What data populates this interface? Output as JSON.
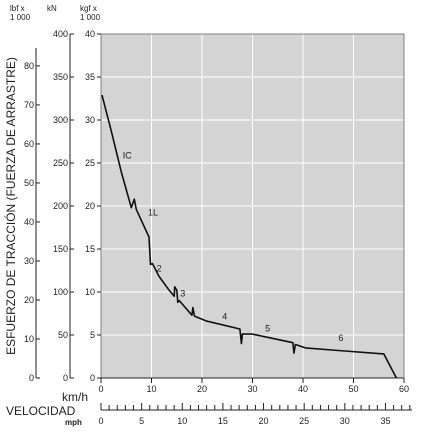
{
  "chart_data": {
    "type": "line",
    "title": "",
    "ylabel": "ESFUERZO DE TRACCIÓN (FUERZA DE ARRASTRE)",
    "xlabel": "VELOCIDAD",
    "units": {
      "lbf": "lbf x\n1 000",
      "kN": "kN",
      "kgf": "kgf x\n1 000",
      "kmh": "km/h",
      "mph": "mph"
    },
    "x_kmh": {
      "min": 0,
      "max": 60,
      "ticks": [
        0,
        10,
        20,
        30,
        40,
        50,
        60
      ]
    },
    "x_mph": {
      "min": 0,
      "max": 35,
      "ticks": [
        0,
        5,
        10,
        15,
        20,
        25,
        30,
        35
      ]
    },
    "y_kgf": {
      "min": 0,
      "max": 40,
      "ticks": [
        0,
        5,
        10,
        15,
        20,
        25,
        30,
        35,
        40
      ]
    },
    "y_kN": {
      "ticks": [
        0,
        50,
        100,
        150,
        200,
        250,
        300,
        350,
        400
      ]
    },
    "y_lbf": {
      "ticks": [
        0,
        10,
        20,
        30,
        40,
        50,
        60,
        70,
        80
      ]
    },
    "grid": true,
    "series": [
      {
        "points": [
          [
            0.2,
            32.9
          ],
          [
            2.0,
            28.8
          ],
          [
            4.0,
            24.0
          ],
          [
            6.0,
            19.8
          ],
          [
            6.6,
            20.8
          ],
          [
            7.0,
            19.6
          ],
          [
            9.5,
            16.4
          ],
          [
            9.8,
            13.2
          ],
          [
            10.2,
            13.3
          ],
          [
            11.5,
            11.8
          ],
          [
            13.5,
            10.2
          ],
          [
            14.5,
            9.5
          ],
          [
            14.6,
            10.6
          ],
          [
            15.0,
            10.2
          ],
          [
            15.2,
            8.8
          ],
          [
            15.5,
            9.0
          ],
          [
            18.0,
            7.3
          ],
          [
            18.2,
            8.2
          ],
          [
            18.5,
            7.2
          ],
          [
            21.0,
            6.6
          ],
          [
            27.5,
            5.7
          ],
          [
            27.8,
            4.0
          ],
          [
            28.0,
            5.1
          ],
          [
            30.0,
            5.1
          ],
          [
            38.0,
            4.1
          ],
          [
            38.2,
            2.9
          ],
          [
            38.5,
            3.9
          ],
          [
            40.5,
            3.5
          ],
          [
            47.0,
            3.2
          ],
          [
            56.0,
            2.8
          ],
          [
            58.5,
            0.0
          ]
        ]
      }
    ],
    "gear_labels": [
      {
        "label": "IC",
        "x": 5.2,
        "y": 25.5
      },
      {
        "label": "1L",
        "x": 10.3,
        "y": 18.9
      },
      {
        "label": "2",
        "x": 11.5,
        "y": 12.4
      },
      {
        "label": "3",
        "x": 16.2,
        "y": 9.5
      },
      {
        "label": "4",
        "x": 24.5,
        "y": 6.8
      },
      {
        "label": "5",
        "x": 33.0,
        "y": 5.4
      },
      {
        "label": "6",
        "x": 47.5,
        "y": 4.3
      }
    ]
  }
}
